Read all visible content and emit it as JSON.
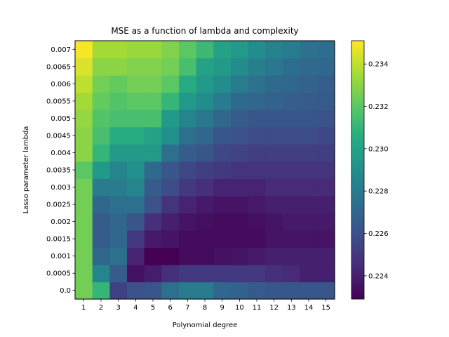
{
  "chart_data": {
    "type": "heatmap",
    "title": "MSE as a function of lambda and complexity",
    "xlabel": "Polynomial degree",
    "ylabel": "Lasso parameter lambda",
    "x_categories": [
      "1",
      "2",
      "3",
      "4",
      "5",
      "6",
      "7",
      "8",
      "9",
      "10",
      "11",
      "12",
      "13",
      "14",
      "15"
    ],
    "y_categories": [
      "0.0",
      "0.0005",
      "0.001",
      "0.0015",
      "0.002",
      "0.0025",
      "0.003",
      "0.0035",
      "0.004",
      "0.0045",
      "0.005",
      "0.0055",
      "0.006",
      "0.0065",
      "0.007"
    ],
    "colormap": "viridis",
    "vmin": 0.2229,
    "vmax": 0.2351,
    "colorbar_ticks": [
      "0.224",
      "0.226",
      "0.228",
      "0.230",
      "0.232",
      "0.234"
    ],
    "colorbar_tick_values": [
      0.224,
      0.226,
      0.228,
      0.23,
      0.232,
      0.234
    ],
    "values": [
      [
        0.2325,
        0.231,
        0.2253,
        0.226,
        0.2262,
        0.2275,
        0.228,
        0.228,
        0.227,
        0.2268,
        0.2264,
        0.2262,
        0.2262,
        0.2262,
        0.2262
      ],
      [
        0.2325,
        0.2285,
        0.2265,
        0.2235,
        0.2239,
        0.2246,
        0.225,
        0.225,
        0.225,
        0.225,
        0.225,
        0.2246,
        0.2244,
        0.224,
        0.224
      ],
      [
        0.2325,
        0.227,
        0.2275,
        0.2242,
        0.2229,
        0.2229,
        0.2233,
        0.2233,
        0.2235,
        0.2236,
        0.2238,
        0.224,
        0.224,
        0.224,
        0.224
      ],
      [
        0.2325,
        0.2265,
        0.227,
        0.225,
        0.2238,
        0.2236,
        0.2233,
        0.2233,
        0.2233,
        0.2233,
        0.2233,
        0.2236,
        0.2236,
        0.2236,
        0.2236
      ],
      [
        0.2325,
        0.2265,
        0.227,
        0.2262,
        0.2246,
        0.224,
        0.2236,
        0.2234,
        0.2233,
        0.2233,
        0.2234,
        0.2236,
        0.2238,
        0.2238,
        0.2238
      ],
      [
        0.2325,
        0.227,
        0.2275,
        0.2275,
        0.226,
        0.2248,
        0.2242,
        0.2238,
        0.2236,
        0.2236,
        0.2238,
        0.224,
        0.224,
        0.224,
        0.224
      ],
      [
        0.2325,
        0.228,
        0.228,
        0.2285,
        0.2265,
        0.2258,
        0.225,
        0.2246,
        0.2242,
        0.2242,
        0.2242,
        0.2244,
        0.2244,
        0.2244,
        0.2244
      ],
      [
        0.232,
        0.2295,
        0.2285,
        0.229,
        0.2272,
        0.2262,
        0.2256,
        0.2252,
        0.225,
        0.2248,
        0.2248,
        0.2248,
        0.2248,
        0.2248,
        0.2248
      ],
      [
        0.233,
        0.231,
        0.2295,
        0.2295,
        0.2295,
        0.2275,
        0.2265,
        0.2262,
        0.2256,
        0.2254,
        0.2252,
        0.2252,
        0.2252,
        0.2252,
        0.2252
      ],
      [
        0.233,
        0.2315,
        0.2305,
        0.2305,
        0.23,
        0.229,
        0.2275,
        0.227,
        0.2262,
        0.226,
        0.2258,
        0.2258,
        0.2258,
        0.2258,
        0.2256
      ],
      [
        0.2332,
        0.2318,
        0.2315,
        0.2315,
        0.2315,
        0.2295,
        0.2285,
        0.2278,
        0.227,
        0.2265,
        0.2262,
        0.2262,
        0.2262,
        0.2262,
        0.226
      ],
      [
        0.2335,
        0.2322,
        0.2318,
        0.232,
        0.232,
        0.231,
        0.2295,
        0.2288,
        0.228,
        0.2272,
        0.227,
        0.2268,
        0.2266,
        0.2265,
        0.2264
      ],
      [
        0.234,
        0.2325,
        0.2322,
        0.2325,
        0.2325,
        0.232,
        0.2305,
        0.2295,
        0.2288,
        0.228,
        0.2276,
        0.2272,
        0.227,
        0.2268,
        0.2266
      ],
      [
        0.2345,
        0.233,
        0.233,
        0.2328,
        0.2328,
        0.2325,
        0.2315,
        0.23,
        0.2295,
        0.2288,
        0.2282,
        0.2278,
        0.2274,
        0.2272,
        0.227
      ],
      [
        0.235,
        0.2335,
        0.2335,
        0.2333,
        0.2333,
        0.2328,
        0.232,
        0.2312,
        0.23,
        0.2295,
        0.2288,
        0.2284,
        0.228,
        0.2276,
        0.2274
      ]
    ]
  }
}
